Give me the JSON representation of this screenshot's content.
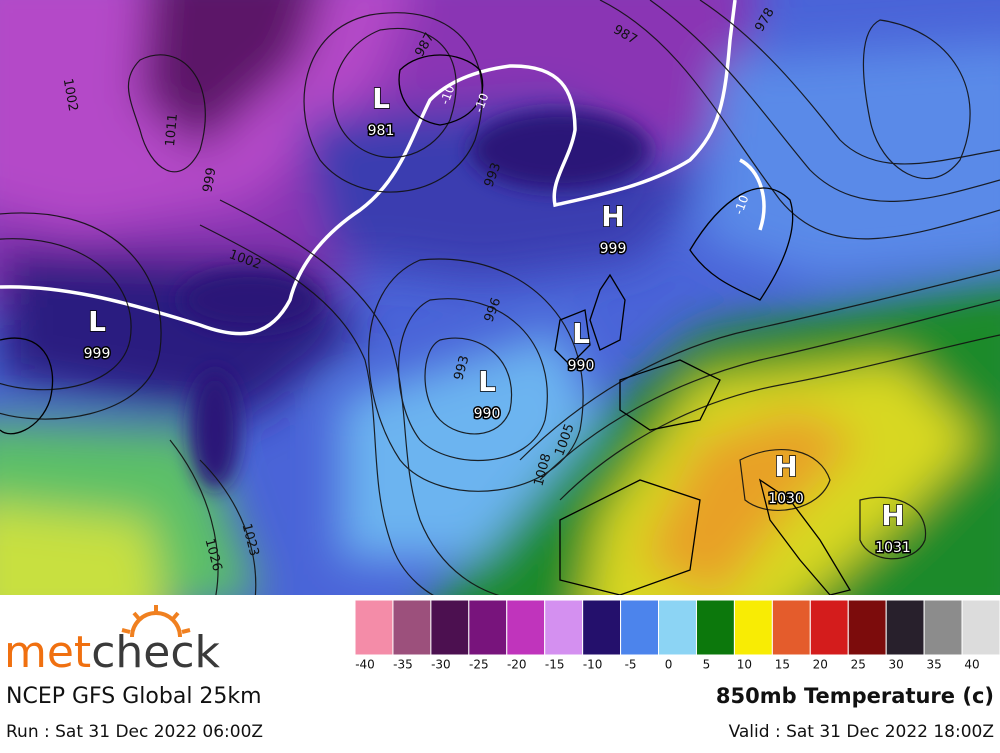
{
  "map": {
    "pressure_centers": [
      {
        "symbol": "L",
        "value": "981"
      },
      {
        "symbol": "H",
        "value": "999"
      },
      {
        "symbol": "L",
        "value": "999"
      },
      {
        "symbol": "L",
        "value": "990"
      },
      {
        "symbol": "L",
        "value": "990"
      },
      {
        "symbol": "H",
        "value": "1030"
      },
      {
        "symbol": "H",
        "value": "1031"
      }
    ],
    "isobar_labels": [
      "987",
      "1011",
      "1002",
      "999",
      "1002",
      "993",
      "996",
      "993",
      "1005",
      "1008",
      "1023",
      "1026",
      "978",
      "987"
    ],
    "temperature_labels": [
      "-10",
      "-10",
      "-10"
    ]
  },
  "legend": {
    "labels": [
      "-40",
      "-35",
      "-30",
      "-25",
      "-20",
      "-15",
      "-10",
      "-5",
      "0",
      "5",
      "10",
      "15",
      "20",
      "25",
      "30",
      "35",
      "40"
    ],
    "colors": [
      "#f48ca8",
      "#9c507c",
      "#4c1050",
      "#78147c",
      "#c034bc",
      "#d490f0",
      "#24106c",
      "#4c84ec",
      "#8cd4f4",
      "#0c780c",
      "#f8ec04",
      "#e45c2c",
      "#d41c1c",
      "#7c0c0c",
      "#28202c",
      "#8c8c8c",
      "#dcdcdc"
    ]
  },
  "footer": {
    "logo": [
      "met",
      "check"
    ],
    "model": "NCEP GFS Global 25km",
    "run": "Run : Sat 31 Dec 2022 06:00Z",
    "product": "850mb Temperature (c)",
    "valid": "Valid : Sat 31 Dec 2022 18:00Z"
  }
}
